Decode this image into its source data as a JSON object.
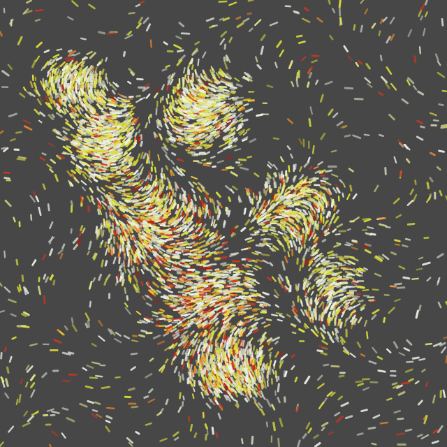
{
  "scene": {
    "background_color": "#474747",
    "palette": [
      "#eef2e8",
      "#d8dfc9",
      "#e9ec8a",
      "#dfe23a",
      "#f0c83a",
      "#ef8a2a",
      "#d4361c",
      "#b01c12"
    ],
    "subject": "particle-flow-field"
  }
}
